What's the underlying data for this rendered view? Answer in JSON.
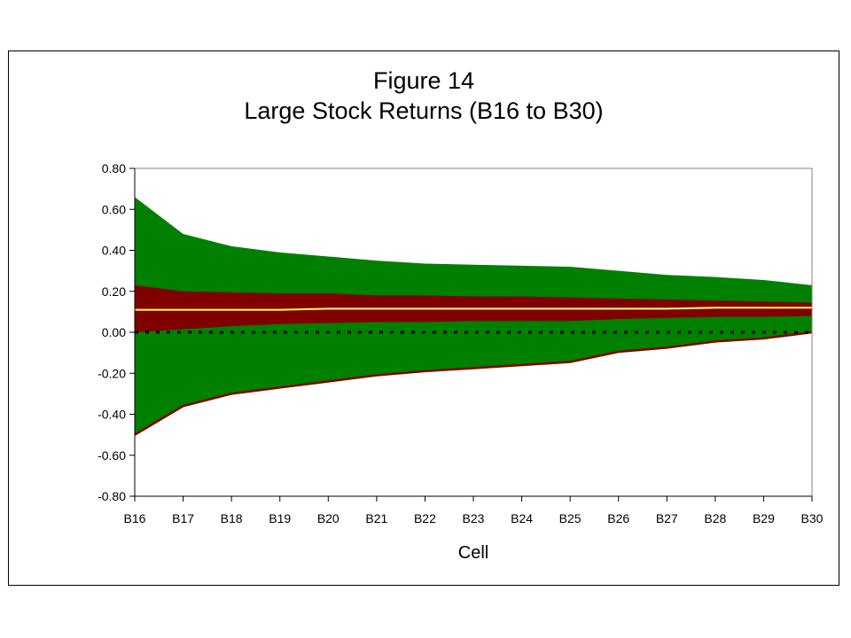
{
  "chart_data": {
    "type": "area",
    "title": "Figure 14",
    "subtitle": "Large Stock Returns (B16 to B30)",
    "xlabel": "Cell",
    "ylabel": "",
    "categories": [
      "B16",
      "B17",
      "B18",
      "B19",
      "B20",
      "B21",
      "B22",
      "B23",
      "B24",
      "B25",
      "B26",
      "B27",
      "B28",
      "B29",
      "B30"
    ],
    "ylim": [
      -0.8,
      0.8
    ],
    "yticks": [
      "0.80",
      "0.60",
      "0.40",
      "0.20",
      "0.00",
      "-0.20",
      "-0.40",
      "-0.60",
      "-0.80"
    ],
    "ytick_values": [
      0.8,
      0.6,
      0.4,
      0.2,
      0.0,
      -0.2,
      -0.4,
      -0.6,
      -0.8
    ],
    "grid": false,
    "legend": "none",
    "series": [
      {
        "values": [
          0.66,
          0.48,
          0.42,
          0.39,
          0.37,
          0.35,
          0.335,
          0.33,
          0.325,
          0.32,
          0.3,
          0.28,
          0.27,
          0.255,
          0.23
        ]
      },
      {
        "values": [
          0.23,
          0.2,
          0.195,
          0.19,
          0.19,
          0.18,
          0.18,
          0.175,
          0.175,
          0.17,
          0.165,
          0.16,
          0.155,
          0.15,
          0.145
        ]
      },
      {
        "values": [
          0.11,
          0.11,
          0.11,
          0.11,
          0.115,
          0.115,
          0.115,
          0.115,
          0.115,
          0.115,
          0.115,
          0.115,
          0.12,
          0.12,
          0.12
        ]
      },
      {
        "values": [
          0.0,
          0.015,
          0.03,
          0.04,
          0.045,
          0.05,
          0.05,
          0.055,
          0.055,
          0.055,
          0.065,
          0.07,
          0.075,
          0.075,
          0.08
        ]
      },
      {
        "values": [
          -0.5,
          -0.36,
          -0.3,
          -0.27,
          -0.24,
          -0.21,
          -0.19,
          -0.175,
          -0.16,
          -0.145,
          -0.095,
          -0.075,
          -0.045,
          -0.03,
          0.0
        ]
      }
    ],
    "reference_line": {
      "value": 0.0,
      "style": "dotted"
    },
    "colors": {
      "outer_band": "#008000",
      "inner_band": "#800000",
      "center_line": "#ffff66",
      "lower_line": "#800000",
      "reference_line": "#000000",
      "plot_background": "#ffffff",
      "plot_border": "#808080"
    }
  }
}
